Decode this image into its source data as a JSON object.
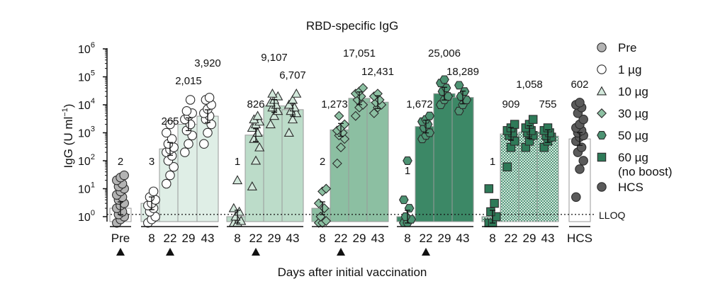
{
  "chart_data": {
    "type": "bar",
    "title": "RBD-specific IgG",
    "xlabel": "Days after initial vaccination",
    "ylabel": "IgG (U ml",
    "ylabel_sup": "−1",
    "ylabel_close": ")",
    "yscale": "log10",
    "ylim": [
      0.6,
      1000000
    ],
    "yticks": [
      {
        "value": 1,
        "base": "10",
        "exp": "0"
      },
      {
        "value": 10,
        "base": "10",
        "exp": "1"
      },
      {
        "value": 100,
        "base": "10",
        "exp": "2"
      },
      {
        "value": 1000,
        "base": "10",
        "exp": "3"
      },
      {
        "value": 10000,
        "base": "10",
        "exp": "4"
      },
      {
        "value": 100000,
        "base": "10",
        "exp": "5"
      },
      {
        "value": 1000000,
        "base": "10",
        "exp": "6"
      }
    ],
    "lloq": {
      "value": 1.2,
      "label": "LLOQ"
    },
    "groups": [
      {
        "key": "pre",
        "bars": [
          {
            "day": "Pre",
            "gmt": 2,
            "label": "2",
            "arrow": true
          }
        ]
      },
      {
        "key": "1ug",
        "bars": [
          {
            "day": "8",
            "gmt": 3,
            "label": "3"
          },
          {
            "day": "22",
            "gmt": 265,
            "label": "265",
            "arrow": true
          },
          {
            "day": "29",
            "gmt": 2015,
            "label": "2,015"
          },
          {
            "day": "43",
            "gmt": 3920,
            "label": "3,920"
          }
        ]
      },
      {
        "key": "10ug",
        "bars": [
          {
            "day": "8",
            "gmt": 1,
            "label": "1"
          },
          {
            "day": "22",
            "gmt": 826,
            "label": "826",
            "arrow": true
          },
          {
            "day": "29",
            "gmt": 9107,
            "label": "9,107"
          },
          {
            "day": "43",
            "gmt": 6707,
            "label": "6,707"
          }
        ]
      },
      {
        "key": "30ug",
        "bars": [
          {
            "day": "8",
            "gmt": 2,
            "label": "2"
          },
          {
            "day": "22",
            "gmt": 1273,
            "label": "1,273",
            "arrow": true
          },
          {
            "day": "29",
            "gmt": 17051,
            "label": "17,051"
          },
          {
            "day": "43",
            "gmt": 12431,
            "label": "12,431"
          }
        ]
      },
      {
        "key": "50ug",
        "bars": [
          {
            "day": "8",
            "gmt": 1,
            "label": "1"
          },
          {
            "day": "22",
            "gmt": 1672,
            "label": "1,672",
            "arrow": true
          },
          {
            "day": "29",
            "gmt": 25006,
            "label": "25,006"
          },
          {
            "day": "43",
            "gmt": 18289,
            "label": "18,289"
          }
        ]
      },
      {
        "key": "60ug",
        "bars": [
          {
            "day": "8",
            "gmt": 1,
            "label": "1"
          },
          {
            "day": "22",
            "gmt": 909,
            "label": "909"
          },
          {
            "day": "29",
            "gmt": 1058,
            "label": "1,058"
          },
          {
            "day": "43",
            "gmt": 755,
            "label": "755"
          }
        ]
      },
      {
        "key": "hcs",
        "bars": [
          {
            "day": "HCS",
            "gmt": 602,
            "label": "602"
          }
        ]
      }
    ],
    "series_style": {
      "pre": {
        "marker": "circle",
        "fill": "#b3b3b3",
        "bar": "#ffffff"
      },
      "1ug": {
        "marker": "circle",
        "fill": "#ffffff",
        "bar": "#dfeee6"
      },
      "10ug": {
        "marker": "triangle",
        "fill": "#d2e8db",
        "bar": "#bcdcc9"
      },
      "30ug": {
        "marker": "diamond",
        "fill": "#8cc0a2",
        "bar": "#8cbfa2"
      },
      "50ug": {
        "marker": "hexagon",
        "fill": "#4d9373",
        "bar": "#3c8866"
      },
      "60ug": {
        "marker": "square",
        "fill": "#2e7a58",
        "bar": "hatch"
      },
      "hcs": {
        "marker": "circle",
        "fill": "#5a5a5a",
        "bar": "#ffffff"
      }
    },
    "points": {
      "pre": [
        [
          0.6,
          0.8,
          1,
          1.2,
          1.5,
          2,
          2.5,
          3,
          4,
          5,
          6,
          8,
          10,
          12,
          15,
          20,
          25,
          30
        ]
      ],
      "1ug": [
        [
          0.6,
          0.8,
          1,
          1.5,
          2,
          2.5,
          3,
          4,
          5,
          8
        ],
        [
          15,
          30,
          60,
          100,
          150,
          200,
          250,
          300,
          400,
          600,
          1000,
          2000
        ],
        [
          200,
          400,
          800,
          1200,
          2000,
          3000,
          4000,
          5000,
          6000,
          15000
        ],
        [
          400,
          1000,
          2000,
          3000,
          4000,
          5000,
          7000,
          10000,
          15000,
          18000
        ]
      ],
      "10ug": [
        [
          0.6,
          0.6,
          0.7,
          1,
          1.5,
          2,
          20
        ],
        [
          12,
          100,
          300,
          600,
          1000,
          1500,
          2000,
          2500,
          3000,
          4000
        ],
        [
          2000,
          4000,
          6000,
          8000,
          10000,
          12000,
          15000,
          20000,
          25000
        ],
        [
          1000,
          3000,
          5000,
          6000,
          8000,
          10000,
          15000,
          25000
        ]
      ],
      "30ug": [
        [
          0.6,
          0.6,
          0.7,
          1,
          2,
          3,
          8,
          10
        ],
        [
          80,
          300,
          600,
          800,
          1000,
          1200,
          1500,
          2000,
          4000
        ],
        [
          4000,
          8000,
          10000,
          15000,
          20000,
          25000,
          30000,
          40000
        ],
        [
          5000,
          8000,
          10000,
          12000,
          15000,
          20000,
          25000
        ]
      ],
      "50ug": [
        [
          0.6,
          0.6,
          0.8,
          1,
          2,
          4,
          100
        ],
        [
          600,
          800,
          1000,
          1500,
          2000,
          2500,
          3000,
          4000
        ],
        [
          10000,
          15000,
          20000,
          30000,
          40000,
          60000,
          80000
        ],
        [
          6000,
          10000,
          15000,
          20000,
          30000,
          50000
        ]
      ],
      "60ug": [
        [
          0.6,
          0.6,
          1,
          1.5,
          3,
          10
        ],
        [
          60,
          300,
          500,
          800,
          1000,
          1200,
          1500,
          2000
        ],
        [
          300,
          500,
          800,
          1000,
          1200,
          1500,
          2000,
          3000
        ],
        [
          300,
          500,
          700,
          800,
          1000,
          1200,
          1500
        ]
      ],
      "hcs": [
        [
          5,
          50,
          100,
          200,
          300,
          500,
          700,
          800,
          1000,
          1200,
          1500,
          2000,
          3000,
          5000,
          8000,
          10000,
          12000
        ]
      ]
    },
    "legend": [
      {
        "key": "pre",
        "label": "Pre"
      },
      {
        "key": "1ug",
        "label": "1 µg"
      },
      {
        "key": "10ug",
        "label": "10 µg"
      },
      {
        "key": "30ug",
        "label": "30 µg"
      },
      {
        "key": "50ug",
        "label": "50 µg"
      },
      {
        "key": "60ug",
        "label": "60 µg",
        "label2": "(no boost)"
      },
      {
        "key": "hcs",
        "label": "HCS"
      }
    ],
    "legend_position": "right"
  }
}
